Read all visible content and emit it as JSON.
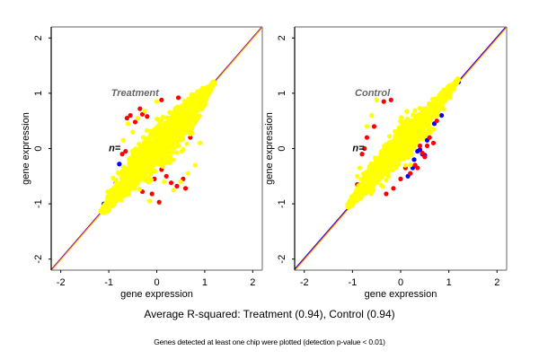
{
  "chart_data": [
    {
      "type": "scatter",
      "panel": "Treatment",
      "title": "Treatment",
      "n_label": "n=",
      "xlabel": "gene expression",
      "ylabel": "gene expression",
      "xlim": [
        -2.2,
        2.2
      ],
      "ylim": [
        -2.2,
        2.2
      ],
      "xticks": [
        -2,
        -1,
        0,
        1,
        2
      ],
      "yticks": [
        -2,
        -1,
        0,
        1,
        2
      ],
      "grid": false,
      "reference_lines": [
        {
          "name": "identity-blue",
          "color": "#0000ff",
          "slope": 1,
          "intercept": 0.01
        },
        {
          "name": "identity-red",
          "color": "#ff0000",
          "slope": 1,
          "intercept": 0.0
        },
        {
          "name": "identity-orange",
          "color": "#ffa500",
          "slope": 1,
          "intercept": -0.01
        }
      ],
      "cloud": {
        "color": "#ffff00",
        "x_range": [
          -1.15,
          1.2
        ],
        "spread": 0.28,
        "count": 1800
      },
      "series": [
        {
          "name": "blue",
          "color": "#0000ff",
          "points": [
            [
              -1.1,
              -1.0
            ],
            [
              -0.78,
              -0.28
            ],
            [
              -1.02,
              -0.9
            ],
            [
              1.2,
              1.2
            ]
          ]
        },
        {
          "name": "red",
          "color": "#ff0000",
          "points": [
            [
              -0.35,
              0.72
            ],
            [
              -0.55,
              0.6
            ],
            [
              -0.3,
              0.62
            ],
            [
              -0.45,
              0.48
            ],
            [
              -0.62,
              0.55
            ],
            [
              0.1,
              0.88
            ],
            [
              0.45,
              0.92
            ],
            [
              -0.2,
              0.58
            ],
            [
              -0.72,
              -0.1
            ],
            [
              -0.65,
              -0.05
            ],
            [
              0.05,
              -0.97
            ],
            [
              -0.1,
              -0.82
            ],
            [
              -0.3,
              -0.78
            ],
            [
              0.3,
              -0.62
            ],
            [
              0.42,
              -0.68
            ],
            [
              0.6,
              -0.72
            ],
            [
              0.2,
              -0.5
            ],
            [
              0.55,
              -0.55
            ],
            [
              0.7,
              0.2
            ],
            [
              0.85,
              0.55
            ],
            [
              0.5,
              0.75
            ],
            [
              -0.05,
              -0.55
            ],
            [
              0.1,
              -0.38
            ],
            [
              -0.85,
              -0.62
            ]
          ]
        },
        {
          "name": "yellow",
          "color": "#ffff00",
          "points": [
            [
              -0.4,
              0.55
            ],
            [
              -0.6,
              0.45
            ],
            [
              -0.25,
              0.68
            ],
            [
              0.0,
              0.85
            ],
            [
              -0.15,
              -0.95
            ],
            [
              0.15,
              -0.6
            ],
            [
              0.5,
              -0.6
            ],
            [
              0.8,
              -0.3
            ],
            [
              -0.7,
              0.15
            ],
            [
              -0.8,
              -0.45
            ],
            [
              0.65,
              -0.45
            ],
            [
              0.35,
              -0.75
            ],
            [
              0.9,
              0.1
            ],
            [
              -0.5,
              0.3
            ]
          ]
        }
      ]
    },
    {
      "type": "scatter",
      "panel": "Control",
      "title": "Control",
      "n_label": "n=",
      "xlabel": "gene expression",
      "ylabel": "gene expression",
      "xlim": [
        -2.2,
        2.2
      ],
      "ylim": [
        -2.2,
        2.2
      ],
      "xticks": [
        -2,
        -1,
        0,
        1,
        2
      ],
      "yticks": [
        -2,
        -1,
        0,
        1,
        2
      ],
      "grid": false,
      "reference_lines": [
        {
          "name": "identity-blue",
          "color": "#0000ff",
          "slope": 1,
          "intercept": 0.02
        },
        {
          "name": "identity-red",
          "color": "#ff0000",
          "slope": 1,
          "intercept": 0.0
        },
        {
          "name": "identity-orange",
          "color": "#ffa500",
          "slope": 1,
          "intercept": -0.01
        }
      ],
      "cloud": {
        "color": "#ffff00",
        "x_range": [
          -1.1,
          1.2
        ],
        "spread": 0.2,
        "offset": 0.05,
        "count": 1800
      },
      "series": [
        {
          "name": "blue",
          "color": "#0000ff",
          "points": [
            [
              0.35,
              -0.05
            ],
            [
              0.45,
              -0.1
            ],
            [
              0.5,
              -0.12
            ],
            [
              0.28,
              -0.2
            ],
            [
              0.25,
              -0.35
            ],
            [
              0.15,
              -0.5
            ],
            [
              0.55,
              0.15
            ],
            [
              0.6,
              0.3
            ],
            [
              0.85,
              0.6
            ],
            [
              1.15,
              1.22
            ],
            [
              1.2,
              1.2
            ],
            [
              0.4,
              -0.02
            ],
            [
              -1.05,
              -0.95
            ],
            [
              0.7,
              0.45
            ]
          ]
        },
        {
          "name": "red",
          "color": "#ff0000",
          "points": [
            [
              -0.35,
              0.85
            ],
            [
              -0.2,
              0.88
            ],
            [
              0.6,
              0.2
            ],
            [
              0.68,
              0.1
            ],
            [
              0.75,
              0.5
            ],
            [
              0.5,
              -0.15
            ],
            [
              0.45,
              -0.08
            ],
            [
              0.3,
              -0.3
            ],
            [
              0.2,
              -0.45
            ],
            [
              0.35,
              -0.35
            ],
            [
              0.0,
              -0.55
            ],
            [
              -0.15,
              -0.72
            ],
            [
              -0.3,
              -0.82
            ],
            [
              -0.8,
              -0.1
            ],
            [
              -0.75,
              0.0
            ],
            [
              -0.55,
              0.4
            ],
            [
              -0.7,
              0.2
            ],
            [
              0.55,
              0.05
            ],
            [
              0.8,
              0.75
            ],
            [
              0.4,
              0.05
            ],
            [
              -0.9,
              -0.65
            ],
            [
              0.1,
              -0.35
            ]
          ]
        },
        {
          "name": "yellow",
          "color": "#ffff00",
          "points": [
            [
              -0.5,
              0.88
            ],
            [
              -0.6,
              0.6
            ],
            [
              -0.85,
              -0.35
            ],
            [
              -0.9,
              -0.5
            ],
            [
              0.2,
              -0.3
            ],
            [
              -0.7,
              0.4
            ]
          ]
        }
      ]
    }
  ],
  "captions": {
    "main": "Average R-squared: Treatment (0.94), Control (0.94)",
    "sub": "Genes detected at least one chip were plotted (detection p-value < 0.01)"
  }
}
